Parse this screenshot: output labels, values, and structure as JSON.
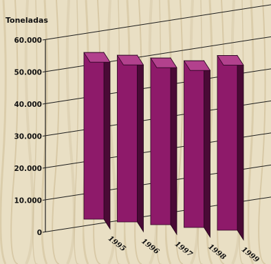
{
  "chart_data": {
    "type": "bar",
    "ylabel": "Toneladas",
    "categories": [
      "1995",
      "1996",
      "1997",
      "1998",
      "1999"
    ],
    "values": [
      52000,
      52000,
      52000,
      52000,
      54500
    ],
    "ylim": [
      0,
      60000
    ],
    "yticks": [
      "0",
      "10.000",
      "20.000",
      "30.000",
      "40.000",
      "50.000",
      "60.000"
    ],
    "grid": true,
    "colors": {
      "bar_front": "#8e1a6a",
      "bar_side": "#4a0a36",
      "bar_top": "#b2418d",
      "background": "#e7dcc0"
    }
  }
}
